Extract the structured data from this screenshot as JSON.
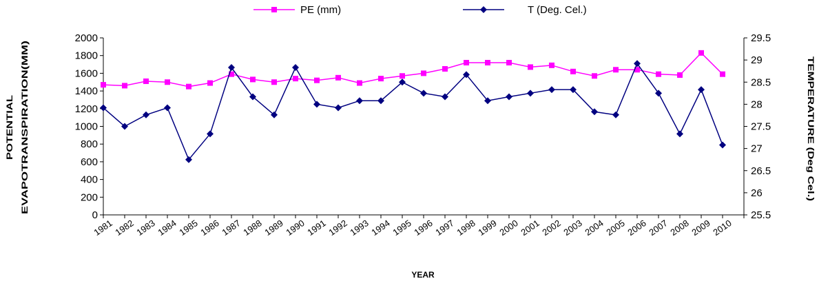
{
  "chart_data": {
    "type": "line",
    "categories": [
      "1981",
      "1982",
      "1983",
      "1984",
      "1985",
      "1986",
      "1987",
      "1988",
      "1989",
      "1990",
      "1991",
      "1992",
      "1993",
      "1994",
      "1995",
      "1996",
      "1997",
      "1998",
      "1999",
      "2000",
      "2001",
      "2002",
      "2003",
      "2004",
      "2005",
      "2006",
      "2007",
      "2008",
      "2009",
      "2010"
    ],
    "x_points": 31,
    "series": [
      {
        "name": "PE (mm)",
        "axis": "left",
        "color": "#ff00ff",
        "marker": "square",
        "values": [
          1470,
          1460,
          1510,
          1500,
          1450,
          1490,
          1590,
          1530,
          1500,
          1540,
          1520,
          1550,
          1490,
          1540,
          1570,
          1600,
          1650,
          1720,
          1720,
          1720,
          1670,
          1690,
          1620,
          1570,
          1640,
          1640,
          1590,
          1580,
          1830,
          1590
        ]
      },
      {
        "name": "T (Deg. Cel.)",
        "axis": "right",
        "color": "#000080",
        "marker": "diamond",
        "values": [
          27.92,
          27.5,
          27.76,
          27.92,
          26.75,
          27.33,
          28.83,
          28.17,
          27.76,
          28.83,
          28.0,
          27.92,
          28.08,
          28.08,
          28.5,
          28.25,
          28.17,
          28.67,
          28.08,
          28.17,
          28.25,
          28.33,
          28.33,
          27.83,
          27.76,
          28.92,
          28.25,
          27.33,
          28.33,
          27.08
        ]
      }
    ],
    "xlabel": "YEAR",
    "ylabel_left_line1": "POTENTIAL",
    "ylabel_left_line2": "EVAPOTRANSPIRATION(MM)",
    "ylabel_right": "TEMPERATURE (Deg Cel.)",
    "ylim_left": [
      0,
      2000
    ],
    "ylim_right": [
      25.5,
      29.5
    ],
    "yticks_left": [
      "0",
      "200",
      "400",
      "600",
      "800",
      "1000",
      "1200",
      "1400",
      "1600",
      "1800",
      "2000"
    ],
    "yticks_right": [
      "25.5",
      "26",
      "26.5",
      "27",
      "27.5",
      "28",
      "28.5",
      "29",
      "29.5"
    ],
    "legend_position": "top-center",
    "grid": false
  }
}
